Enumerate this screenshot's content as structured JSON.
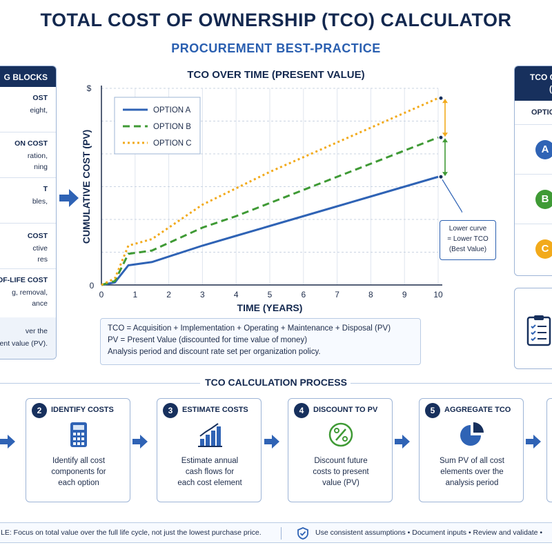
{
  "header": {
    "title": "TOTAL COST OF OWNERSHIP (TCO) CALCULATOR",
    "subtitle": "PROCUREMENT BEST-PRACTICE"
  },
  "left_panel": {
    "header": "G BLOCKS",
    "items": [
      {
        "title": "OST",
        "lines": [
          "eight,"
        ]
      },
      {
        "title": "ON COST",
        "lines": [
          "ration,",
          "ning"
        ]
      },
      {
        "title": "T",
        "lines": [
          "bles,"
        ]
      },
      {
        "title": "COST",
        "lines": [
          "ctive",
          "res"
        ]
      },
      {
        "title": "OF-LIFE COST",
        "lines": [
          "g, removal,",
          "ance"
        ]
      }
    ],
    "footer_lines": [
      "ver the",
      "esent value (PV)."
    ]
  },
  "chart_data": {
    "type": "line",
    "title": "TCO OVER TIME (PRESENT VALUE)",
    "xlabel": "TIME (YEARS)",
    "ylabel": "CUMULATIVE COST (PV)",
    "y_axis_top_label": "$",
    "y_axis_zero_label": "0",
    "xlim": [
      0,
      10
    ],
    "ylim": [
      0,
      6
    ],
    "x_ticks": [
      "0",
      "1",
      "2",
      "3",
      "4",
      "5",
      "6",
      "7",
      "8",
      "9",
      "10"
    ],
    "grid": true,
    "legend_position": "top-left",
    "series": [
      {
        "name": "OPTION A",
        "color": "#2f63b5",
        "style": "solid",
        "x": [
          0,
          0.4,
          0.8,
          1.5,
          3,
          4,
          5,
          6,
          7,
          8,
          9,
          10
        ],
        "y": [
          0,
          0.08,
          0.6,
          0.7,
          1.2,
          1.5,
          1.8,
          2.1,
          2.4,
          2.7,
          3.0,
          3.3
        ]
      },
      {
        "name": "OPTION B",
        "color": "#3f9a35",
        "style": "dashed",
        "x": [
          0,
          0.4,
          0.8,
          1.5,
          3,
          4,
          5,
          6,
          7,
          8,
          9,
          10
        ],
        "y": [
          0,
          0.12,
          0.95,
          1.05,
          1.75,
          2.1,
          2.5,
          2.9,
          3.3,
          3.7,
          4.1,
          4.5
        ]
      },
      {
        "name": "OPTION C",
        "color": "#f2aa1b",
        "style": "dotted",
        "x": [
          0,
          0.4,
          0.8,
          1.5,
          3,
          4,
          5,
          6,
          7,
          8,
          9,
          10
        ],
        "y": [
          0,
          0.2,
          1.2,
          1.4,
          2.45,
          2.95,
          3.45,
          3.9,
          4.35,
          4.8,
          5.25,
          5.7
        ]
      }
    ],
    "callout": [
      "Lower curve",
      "= Lower TCO",
      "(Best Value)"
    ]
  },
  "formula": {
    "lines": [
      "TCO = Acquisition + Implementation + Operating + Maintenance + Disposal (PV)",
      "PV = Present Value (discounted for time value of money)",
      "Analysis period and discount rate set per organization policy."
    ]
  },
  "right_panel": {
    "header_lines": [
      "TCO C",
      "("
    ],
    "subheader": "OPTIO",
    "badges": [
      {
        "label": "A",
        "color": "#2f63b5"
      },
      {
        "label": "B",
        "color": "#3f9a35"
      },
      {
        "label": "C",
        "color": "#f2aa1b"
      }
    ]
  },
  "process": {
    "title": "TCO CALCULATION PROCESS",
    "steps": [
      {
        "num": "2",
        "title": "IDENTIFY COSTS",
        "icon": "calculator-icon",
        "lines": [
          "Identify all cost",
          "components for",
          "each option"
        ]
      },
      {
        "num": "3",
        "title": "ESTIMATE COSTS",
        "icon": "bar-chart-icon",
        "lines": [
          "Estimate annual",
          "cash flows for",
          "each cost element"
        ]
      },
      {
        "num": "4",
        "title": "DISCOUNT TO PV",
        "icon": "percent-icon",
        "lines": [
          "Discount future",
          "costs to present",
          "value (PV)"
        ]
      },
      {
        "num": "5",
        "title": "AGGREGATE TCO",
        "icon": "pie-chart-icon",
        "lines": [
          "Sum PV of all cost",
          "elements over the",
          "analysis period"
        ]
      }
    ]
  },
  "bottom_bar": {
    "left_text": "LE:   Focus on total value over the full life cycle, not just the lowest purchase price.",
    "right_text": "Use consistent assumptions  •  Document inputs  •  Review and validate  •",
    "icon": "shield-check-icon"
  }
}
